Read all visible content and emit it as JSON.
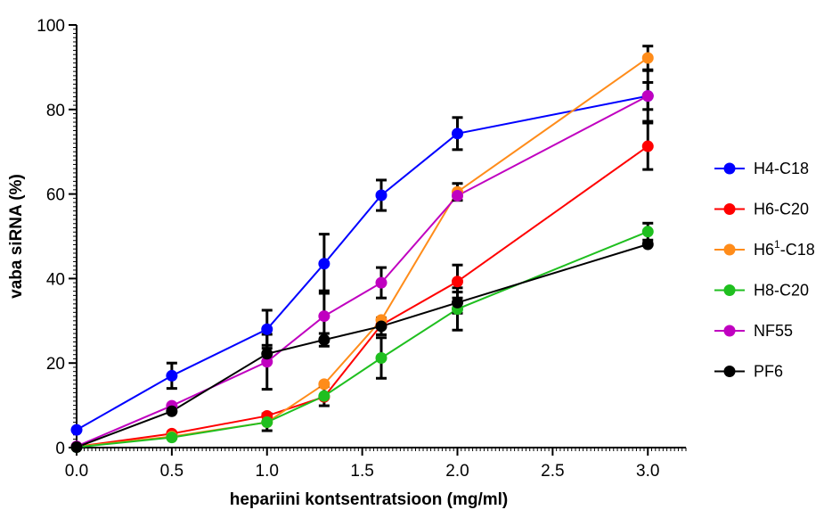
{
  "chart_data": {
    "type": "line",
    "xlabel": "hepariini kontsentratsioon (mg/ml)",
    "ylabel": "vaba siRNA (%)",
    "xlim": [
      0,
      3.2
    ],
    "ylim": [
      0,
      100
    ],
    "x_ticks": [
      "0.0",
      "0.5",
      "1.0",
      "1.5",
      "2.0",
      "2.5",
      "3.0"
    ],
    "y_ticks": [
      "0",
      "20",
      "40",
      "60",
      "80",
      "100"
    ],
    "grid": false,
    "legend_position": "right",
    "x": [
      0,
      0.5,
      1.0,
      1.3,
      1.6,
      2.0,
      3.0
    ],
    "series": [
      {
        "name": "H4-C18",
        "legend_main": "H4-C18",
        "legend_sup": "",
        "legend_rest": "",
        "color": "#0000ff",
        "values": [
          4.2,
          17.0,
          28.0,
          43.5,
          59.7,
          74.3,
          83.2
        ],
        "errors": [
          0,
          3.0,
          4.5,
          7.0,
          3.6,
          3.8,
          6.0
        ]
      },
      {
        "name": "H6-C20",
        "legend_main": "H6-C20",
        "legend_sup": "",
        "legend_rest": "",
        "color": "#ff0000",
        "values": [
          0.2,
          3.3,
          7.5,
          12.0,
          29.0,
          39.3,
          71.3
        ],
        "errors": [
          0,
          0,
          0,
          0,
          0,
          3.9,
          5.5
        ]
      },
      {
        "name": "H61-C18",
        "legend_main": "H6",
        "legend_sup": "1",
        "legend_rest": "-C18",
        "color": "#ff8c1a",
        "values": [
          0.2,
          2.6,
          6.0,
          15.0,
          30.2,
          60.5,
          92.2
        ],
        "errors": [
          0,
          0,
          0,
          0,
          0,
          2.0,
          2.8
        ]
      },
      {
        "name": "H8-C20",
        "legend_main": "H8-C20",
        "legend_sup": "",
        "legend_rest": "",
        "color": "#1fbf1f",
        "values": [
          0.1,
          2.4,
          6.0,
          12.2,
          21.2,
          32.8,
          51.1
        ],
        "errors": [
          0,
          0,
          2.0,
          2.3,
          4.8,
          5.0,
          2.0
        ]
      },
      {
        "name": "NF55",
        "legend_main": "NF55",
        "legend_sup": "",
        "legend_rest": "",
        "color": "#c000c0",
        "values": [
          0.3,
          9.9,
          20.3,
          31.1,
          39.0,
          59.6,
          83.2
        ],
        "errors": [
          0,
          0,
          6.5,
          6.0,
          3.6,
          0,
          3.2
        ]
      },
      {
        "name": "PF6",
        "legend_main": "PF6",
        "legend_sup": "",
        "legend_rest": "",
        "color": "#000000",
        "values": [
          0.1,
          8.6,
          22.2,
          25.5,
          28.7,
          34.3,
          48.1
        ],
        "errors": [
          0,
          0,
          2.0,
          1.5,
          2.0,
          2.5,
          0
        ]
      }
    ]
  }
}
